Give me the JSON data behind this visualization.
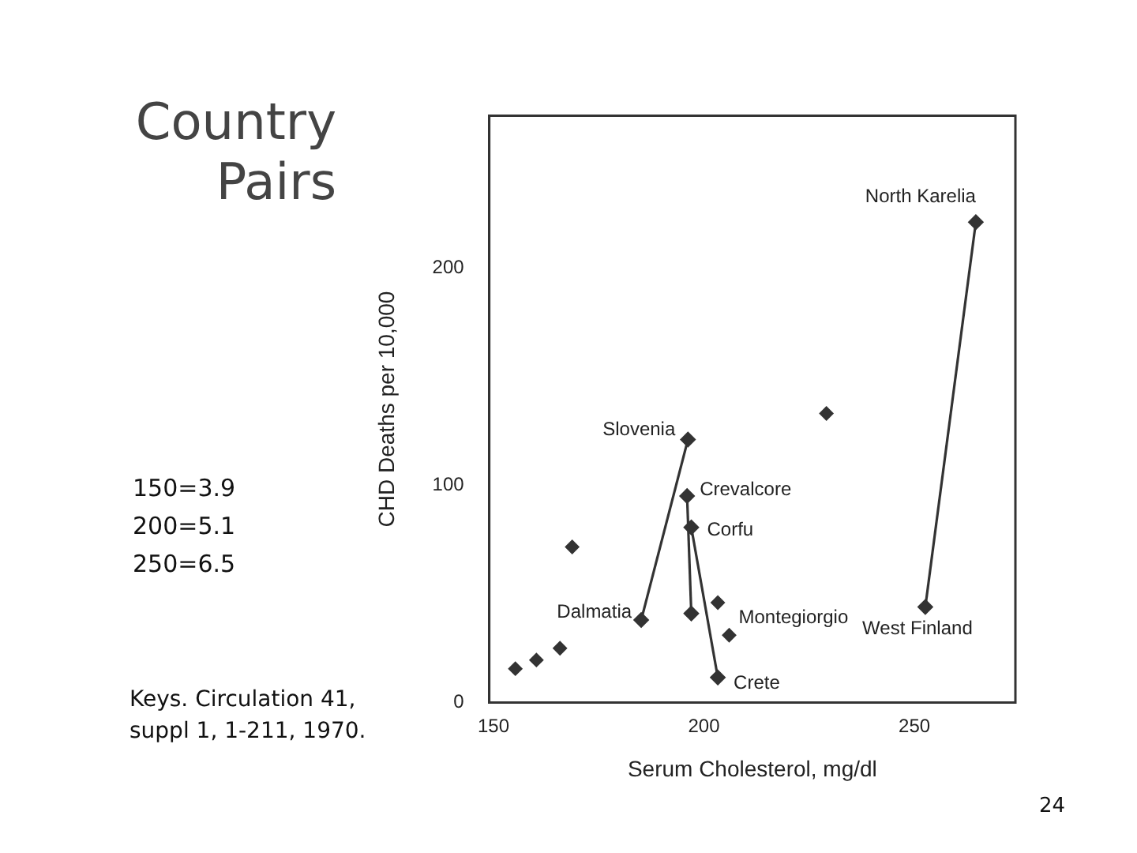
{
  "chart_data": {
    "type": "scatter",
    "title": "Country Pairs",
    "xlabel": "Serum Cholesterol, mg/dl",
    "ylabel": "CHD Deaths per 10,000",
    "xlim": [
      149,
      274
    ],
    "ylim": [
      0,
      270
    ],
    "xticks": [
      150,
      200,
      250
    ],
    "yticks": [
      0,
      100,
      200
    ],
    "grid": false,
    "legend": false,
    "marker": "diamond",
    "series": [
      {
        "type": "scatter",
        "color": "#333333",
        "x": [
          155.2,
          160.2,
          165.8,
          168.7,
          203.3,
          206,
          229.1
        ],
        "values": [
          15.6,
          19.6,
          25,
          71.6,
          46,
          31,
          133
        ]
      },
      {
        "type": "line",
        "color": "#333333",
        "x": [
          185.1,
          196.2
        ],
        "values": [
          38,
          121
        ]
      },
      {
        "type": "line",
        "color": "#333333",
        "x": [
          196,
          197
        ],
        "values": [
          95,
          41
        ]
      },
      {
        "type": "line",
        "color": "#333333",
        "x": [
          197,
          203.3
        ],
        "values": [
          80.6,
          11.6
        ]
      },
      {
        "type": "line",
        "color": "#333333",
        "x": [
          252.6,
          264.6
        ],
        "values": [
          44,
          221
        ]
      }
    ],
    "annotations": [
      {
        "text": "North Karelia",
        "x": 264.6,
        "y": 221
      },
      {
        "text": "Slovenia",
        "x": 196.2,
        "y": 121
      },
      {
        "text": "Crevalcore",
        "x": 196,
        "y": 95
      },
      {
        "text": "Corfu",
        "x": 197,
        "y": 80.6
      },
      {
        "text": "Dalmatia",
        "x": 185.1,
        "y": 38
      },
      {
        "text": "Montegiorgio",
        "x": 197,
        "y": 41
      },
      {
        "text": "West Finland",
        "x": 252.6,
        "y": 44
      },
      {
        "text": "Crete",
        "x": 203.3,
        "y": 11.6
      },
      "150=3.9",
      "200=5.1",
      "250=6.5",
      "Keys. Circulation 41, suppl 1, 1-211, 1970.",
      "24"
    ]
  }
}
